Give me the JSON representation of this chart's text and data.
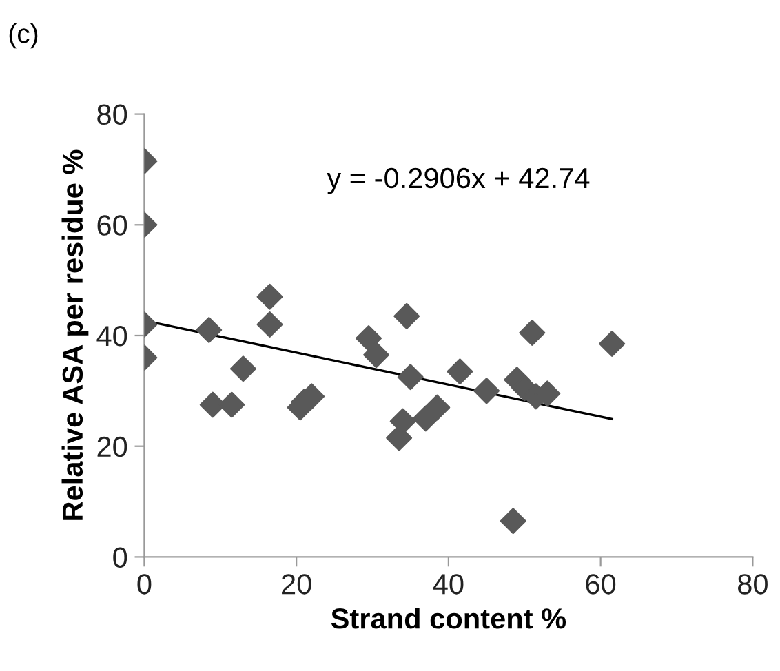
{
  "chart_data": {
    "type": "scatter",
    "xlabel": "Strand content %",
    "ylabel": "Relative ASA per residue %",
    "xlim": [
      0,
      80
    ],
    "xticks": [
      0,
      20,
      40,
      60,
      80
    ],
    "ylim": [
      0,
      80
    ],
    "yticks": [
      0,
      20,
      40,
      60,
      80
    ],
    "grid": false,
    "legend": false,
    "annotations": [
      "(c)",
      "y = -0.2906x + 42.74"
    ],
    "series": [
      {
        "marker": "diamond",
        "color": "#595959",
        "x": [
          0,
          0,
          0,
          0,
          8.5,
          9,
          11.5,
          13,
          16.5,
          16.5,
          20.5,
          21,
          22,
          29.5,
          30.5,
          33.5,
          34,
          34.5,
          35,
          37,
          38.5,
          41.5,
          45,
          48.5,
          49,
          50,
          51,
          51.5,
          53,
          61.5
        ],
        "values": [
          71.5,
          60,
          42,
          36,
          41,
          27.5,
          27.5,
          34,
          47,
          42,
          27,
          28,
          29,
          39.5,
          36.5,
          21.5,
          24.5,
          43.5,
          32.5,
          25,
          27,
          33.5,
          30,
          6.5,
          32,
          30.5,
          40.5,
          29,
          29.5,
          38.5
        ]
      },
      {
        "type": "line",
        "marker": "none",
        "line_style": "solid",
        "color": "#000000",
        "x": [
          0,
          61.5
        ],
        "values": [
          42.7,
          24.9
        ]
      }
    ]
  }
}
